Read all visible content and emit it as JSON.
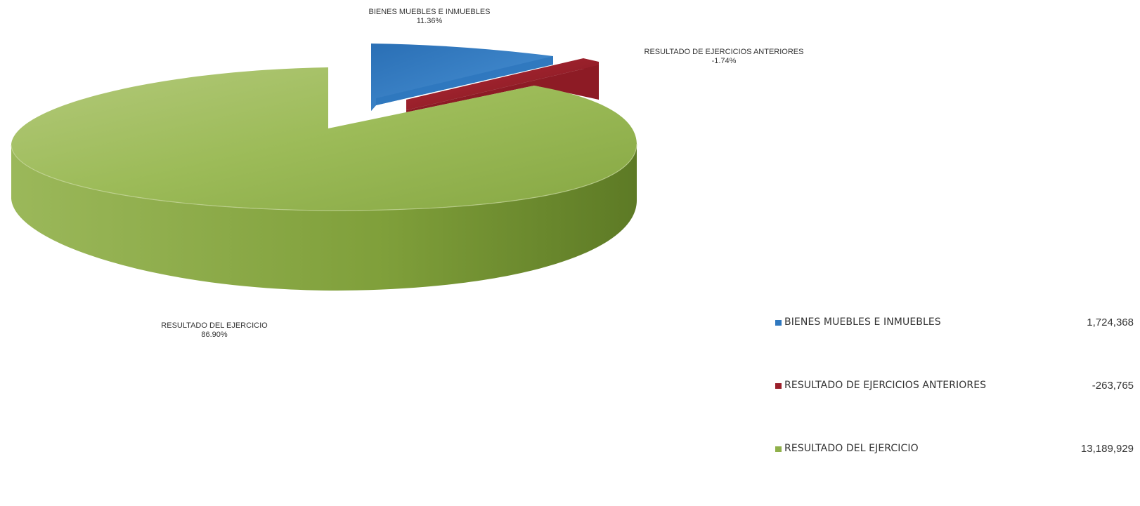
{
  "chart_data": {
    "type": "pie",
    "title": "",
    "slices": [
      {
        "label": "BIENES MUEBLES E INMUEBLES",
        "percent_label": "11.36%",
        "percent": 11.36,
        "value": 1724368,
        "value_label": "1,724,368",
        "color": "#2f78bf"
      },
      {
        "label": "RESULTADO DE EJERCICIOS ANTERIORES",
        "percent_label": "-1.74%",
        "percent": -1.74,
        "value": -263765,
        "value_label": "-263,765",
        "color": "#9a1f2a"
      },
      {
        "label": "RESULTADO DEL EJERCICIO",
        "percent_label": "86.90%",
        "percent": 86.9,
        "value": 13189929,
        "value_label": "13,189,929",
        "color": "#8fb04a"
      }
    ],
    "legend_placement": "bottom-right",
    "style": "3d-exploded"
  },
  "labels": {
    "bienes_name": "BIENES MUEBLES E INMUEBLES",
    "bienes_pct": "11.36%",
    "anteriores_name": "RESULTADO DE EJERCICIOS ANTERIORES",
    "anteriores_pct": "-1.74%",
    "ejercicio_name": "RESULTADO DEL EJERCICIO",
    "ejercicio_pct": "86.90%"
  },
  "legend": {
    "items": [
      {
        "label": "BIENES MUEBLES E INMUEBLES",
        "value": "1,724,368",
        "color": "#2f78bf"
      },
      {
        "label": "RESULTADO DE EJERCICIOS ANTERIORES",
        "value": "-263,765",
        "color": "#9a1f2a"
      },
      {
        "label": "RESULTADO DEL EJERCICIO",
        "value": "13,189,929",
        "color": "#8fb04a"
      }
    ]
  }
}
